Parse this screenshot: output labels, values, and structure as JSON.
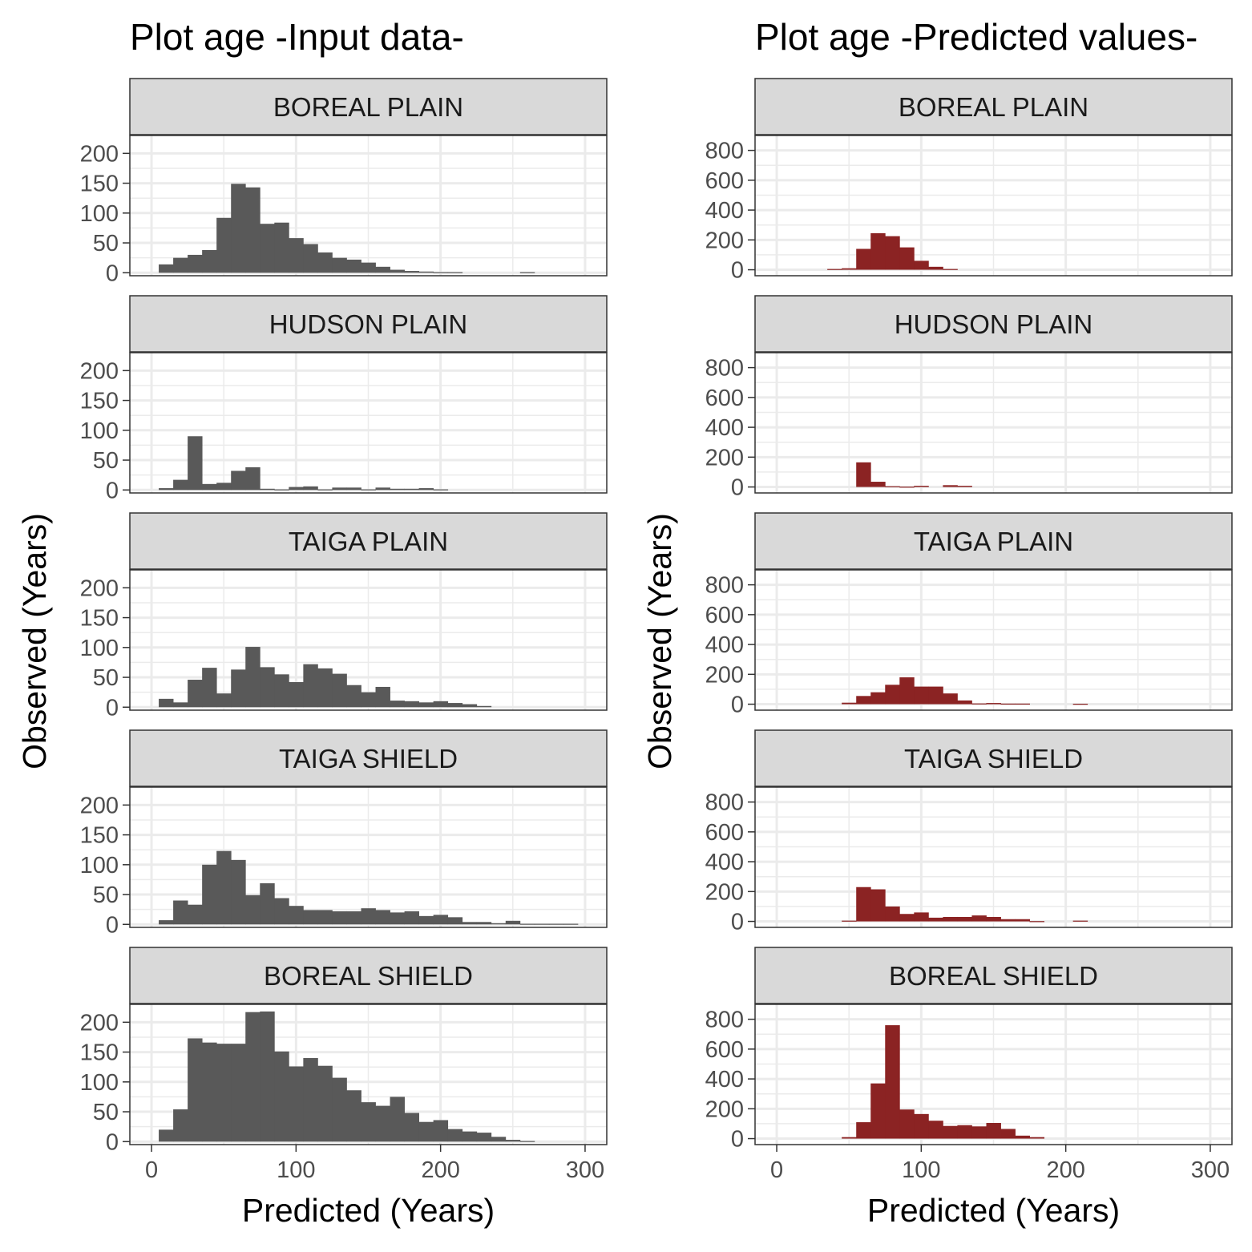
{
  "chart_data": [
    {
      "type": "histogram",
      "title": "Plot age -Input data-",
      "xlabel": "Predicted (Years)",
      "ylabel": "Observed (Years)",
      "xlim": [
        -15,
        315
      ],
      "xticks": [
        0,
        100,
        200,
        300
      ],
      "ylim": [
        -5,
        230
      ],
      "yticks": [
        0,
        50,
        100,
        150,
        200
      ],
      "bin_width": 10,
      "bin_start": 5,
      "bar_color": "#595959",
      "grid": true,
      "facets": [
        {
          "label": "BOREAL PLAIN",
          "values": [
            14,
            25,
            30,
            38,
            92,
            149,
            143,
            82,
            84,
            58,
            48,
            34,
            25,
            22,
            17,
            10,
            5,
            3,
            2,
            1,
            1,
            0,
            0,
            0,
            0,
            1,
            0,
            0,
            0,
            0
          ]
        },
        {
          "label": "HUDSON PLAIN",
          "values": [
            3,
            17,
            90,
            10,
            12,
            32,
            38,
            2,
            1,
            5,
            6,
            1,
            4,
            4,
            1,
            4,
            2,
            2,
            3,
            1,
            0,
            0,
            0,
            0,
            0,
            0,
            0,
            0,
            0,
            0
          ]
        },
        {
          "label": "TAIGA PLAIN",
          "values": [
            14,
            8,
            46,
            66,
            23,
            63,
            101,
            67,
            55,
            42,
            72,
            65,
            56,
            37,
            25,
            34,
            11,
            10,
            8,
            10,
            7,
            5,
            2,
            0,
            0,
            0,
            0,
            0,
            0,
            0
          ]
        },
        {
          "label": "TAIGA SHIELD",
          "values": [
            7,
            40,
            33,
            100,
            123,
            108,
            49,
            69,
            44,
            31,
            24,
            24,
            22,
            22,
            27,
            24,
            20,
            22,
            14,
            16,
            12,
            4,
            4,
            2,
            6,
            1,
            1,
            1,
            1,
            0
          ]
        },
        {
          "label": "BOREAL SHIELD",
          "values": [
            20,
            54,
            173,
            166,
            164,
            164,
            217,
            218,
            151,
            126,
            140,
            127,
            107,
            86,
            66,
            60,
            75,
            48,
            33,
            36,
            21,
            17,
            15,
            8,
            3,
            1,
            0,
            0,
            0,
            0
          ]
        }
      ]
    },
    {
      "type": "histogram",
      "title": "Plot age -Predicted values-",
      "xlabel": "Predicted (Years)",
      "ylabel": "Observed (Years)",
      "xlim": [
        -15,
        315
      ],
      "xticks": [
        0,
        100,
        200,
        300
      ],
      "ylim": [
        -40,
        900
      ],
      "yticks": [
        0,
        200,
        400,
        600,
        800
      ],
      "bin_width": 10,
      "bin_start": 35,
      "bar_color": "#8b2323",
      "grid": true,
      "facets": [
        {
          "label": "BOREAL PLAIN",
          "values": [
            5,
            10,
            140,
            245,
            225,
            150,
            60,
            20,
            5,
            0,
            0,
            0,
            0,
            0,
            0,
            0,
            0,
            0,
            0,
            0
          ]
        },
        {
          "label": "HUDSON PLAIN",
          "values": [
            0,
            0,
            165,
            35,
            5,
            2,
            8,
            0,
            12,
            8,
            0,
            0,
            0,
            0,
            0,
            0,
            0,
            0,
            0,
            0
          ]
        },
        {
          "label": "TAIGA PLAIN",
          "values": [
            0,
            10,
            55,
            80,
            130,
            180,
            118,
            118,
            72,
            25,
            5,
            8,
            4,
            4,
            0,
            0,
            0,
            3,
            0,
            0
          ]
        },
        {
          "label": "TAIGA SHIELD",
          "values": [
            0,
            5,
            230,
            215,
            100,
            50,
            60,
            25,
            30,
            30,
            40,
            30,
            15,
            15,
            2,
            0,
            0,
            5,
            0,
            0
          ]
        },
        {
          "label": "BOREAL SHIELD",
          "values": [
            0,
            10,
            110,
            370,
            760,
            195,
            165,
            120,
            85,
            90,
            82,
            105,
            65,
            20,
            10,
            0,
            0,
            0,
            0,
            0
          ]
        }
      ]
    }
  ]
}
